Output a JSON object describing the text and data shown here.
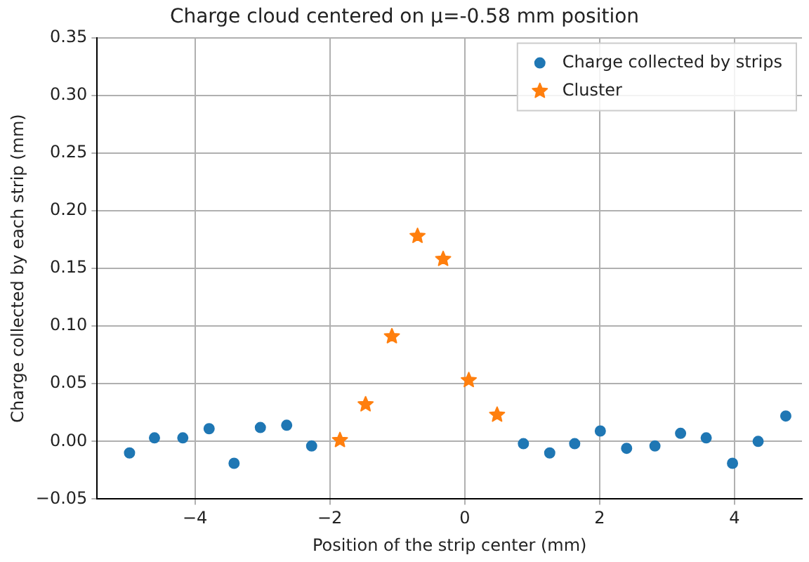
{
  "chart_data": {
    "type": "scatter",
    "title": "Charge cloud centered on μ=-0.58 mm position",
    "xlabel": "Position of the strip center (mm)",
    "ylabel": "Charge collected by each strip (mm)",
    "series": [
      {
        "name": "Charge collected by strips",
        "color": "#1f77b4",
        "marker": "circle",
        "x": [
          -4.97,
          -4.6,
          -4.18,
          -3.79,
          -3.42,
          -3.03,
          -2.64,
          -2.27,
          0.87,
          1.26,
          1.63,
          2.01,
          2.4,
          2.82,
          3.2,
          3.58,
          3.97,
          4.35,
          4.76
        ],
        "values": [
          -0.01,
          0.003,
          0.003,
          0.011,
          -0.019,
          0.012,
          0.014,
          -0.004,
          -0.002,
          -0.01,
          -0.002,
          0.009,
          -0.006,
          -0.004,
          0.007,
          0.003,
          -0.019,
          0.0,
          0.022
        ]
      },
      {
        "name": "Cluster",
        "color": "#ff7f0e",
        "marker": "star",
        "x": [
          -1.85,
          -1.47,
          -1.08,
          -0.7,
          -0.32,
          0.06,
          0.48
        ],
        "values": [
          0.001,
          0.032,
          0.091,
          0.178,
          0.158,
          0.053,
          0.023
        ]
      }
    ],
    "xlim": [
      -5.45,
      5.0
    ],
    "xticks": [
      {
        "value": -4,
        "label": "−4"
      },
      {
        "value": -2,
        "label": "−2"
      },
      0,
      2,
      4
    ],
    "ylim": [
      -0.05,
      0.35
    ],
    "yticks": [
      {
        "value": -0.05,
        "label": "−0.05"
      },
      {
        "value": 0,
        "label": "0.00"
      },
      0.05,
      {
        "value": 0.1,
        "label": "0.10"
      },
      0.15,
      {
        "value": 0.2,
        "label": "0.20"
      },
      0.25,
      {
        "value": 0.3,
        "label": "0.30"
      },
      0.35
    ],
    "grid": true,
    "legend": "top right"
  }
}
